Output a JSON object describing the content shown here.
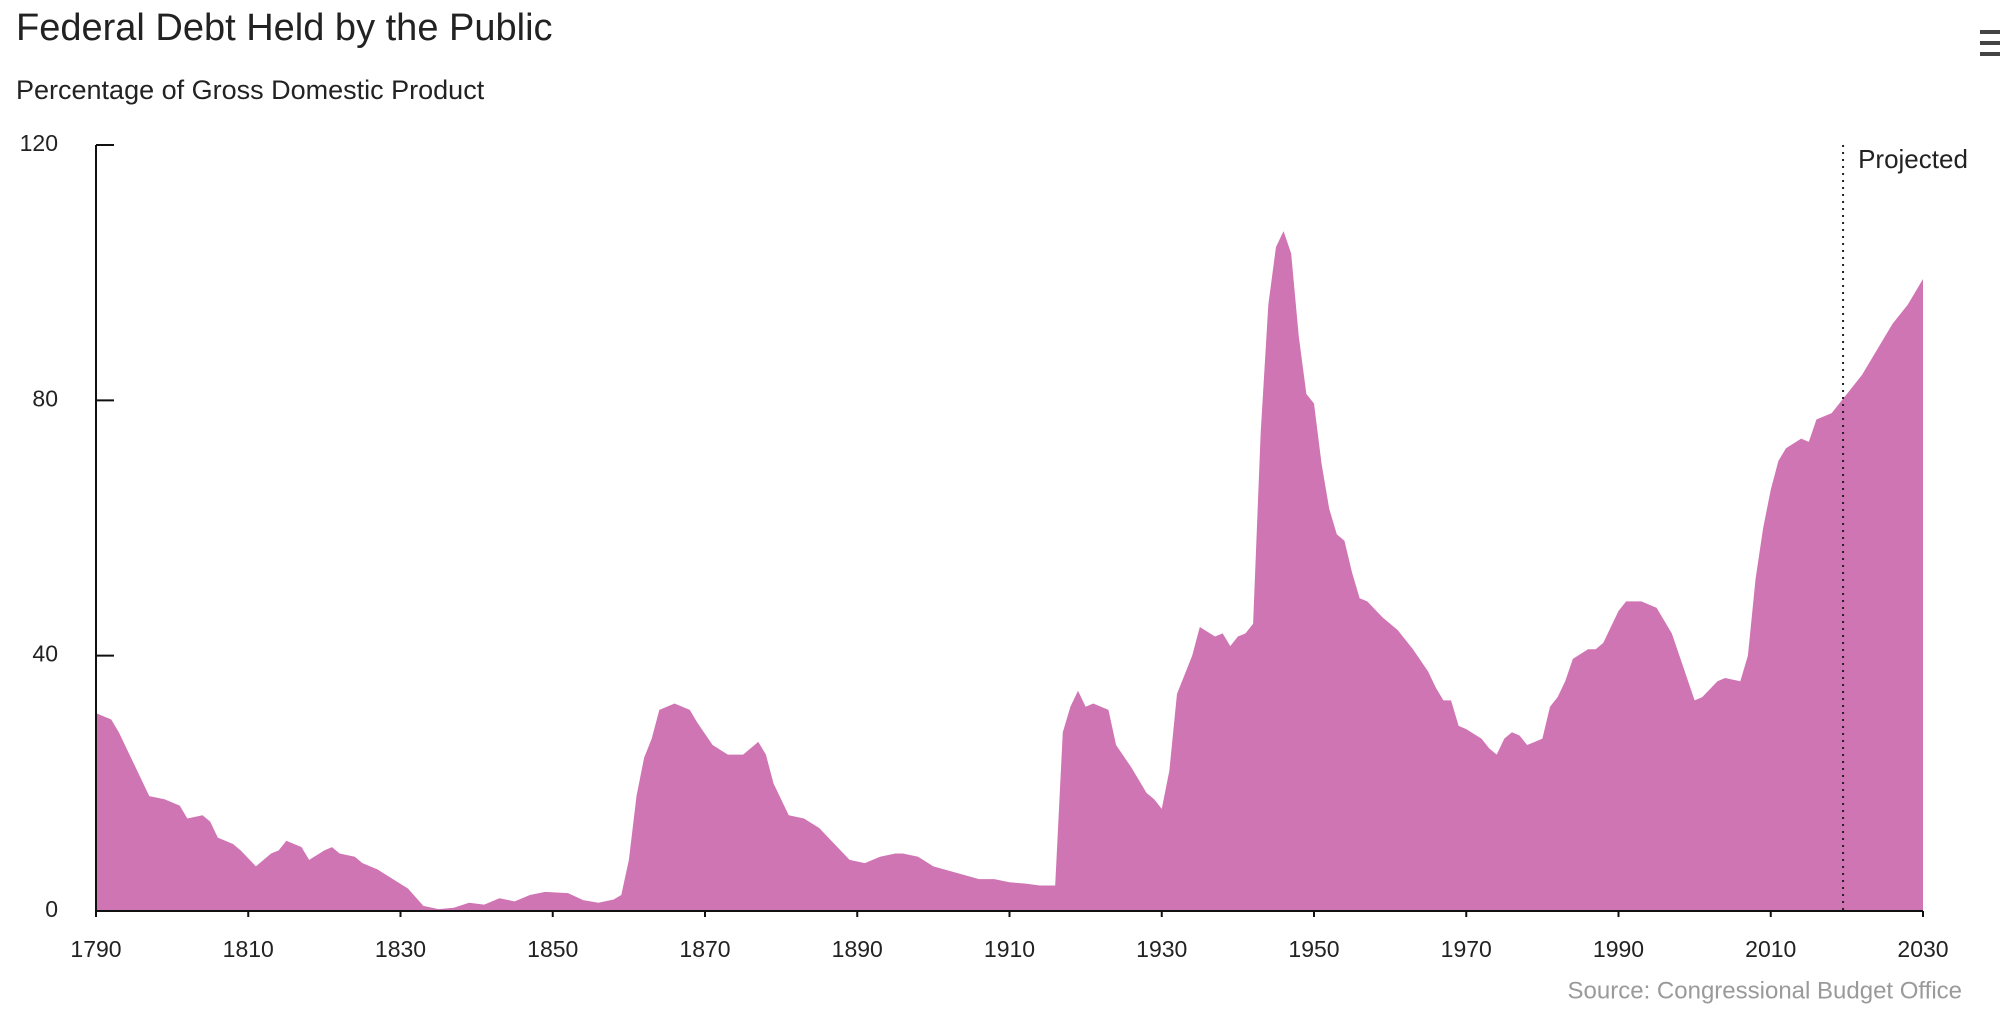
{
  "chart_data": {
    "type": "area",
    "title": "Federal Debt Held by the Public",
    "subtitle": "Percentage of Gross Domestic Product",
    "source": "Source: Congressional Budget Office",
    "color": "#d075b3",
    "annotations": [
      {
        "text": "Projected",
        "x": 2019.5
      }
    ],
    "xlim": [
      1790,
      2030
    ],
    "xticks": [
      1790,
      1810,
      1830,
      1850,
      1870,
      1890,
      1910,
      1930,
      1950,
      1970,
      1990,
      2010,
      2030
    ],
    "ylim": [
      0,
      120
    ],
    "yticks": [
      0,
      40,
      80,
      120
    ],
    "x": [
      1790,
      1792,
      1793,
      1795,
      1797,
      1799,
      1801,
      1802,
      1804,
      1805,
      1806,
      1808,
      1809,
      1811,
      1813,
      1814,
      1815,
      1817,
      1818,
      1820,
      1821,
      1822,
      1824,
      1825,
      1827,
      1829,
      1831,
      1833,
      1835,
      1837,
      1839,
      1841,
      1843,
      1845,
      1847,
      1849,
      1852,
      1854,
      1856,
      1858,
      1859,
      1860,
      1861,
      1862,
      1863,
      1864,
      1866,
      1868,
      1869,
      1871,
      1873,
      1875,
      1877,
      1878,
      1879,
      1881,
      1883,
      1885,
      1887,
      1889,
      1891,
      1893,
      1895,
      1896,
      1898,
      1900,
      1903,
      1906,
      1908,
      1910,
      1912,
      1914,
      1916,
      1917,
      1918,
      1919,
      1920,
      1921,
      1923,
      1924,
      1926,
      1928,
      1929,
      1930,
      1931,
      1932,
      1934,
      1935,
      1937,
      1938,
      1939,
      1940,
      1941,
      1942,
      1943,
      1944,
      1945,
      1946,
      1947,
      1948,
      1949,
      1950,
      1951,
      1952,
      1953,
      1954,
      1955,
      1956,
      1957,
      1959,
      1961,
      1963,
      1965,
      1966,
      1967,
      1968,
      1969,
      1970,
      1972,
      1973,
      1974,
      1975,
      1976,
      1977,
      1978,
      1979,
      1980,
      1981,
      1982,
      1983,
      1984,
      1986,
      1987,
      1988,
      1990,
      1991,
      1993,
      1995,
      1997,
      1998,
      2000,
      2001,
      2003,
      2004,
      2006,
      2007,
      2008,
      2009,
      2010,
      2011,
      2012,
      2014,
      2015,
      2016,
      2018,
      2020,
      2022,
      2024,
      2026,
      2028,
      2030
    ],
    "values": [
      31,
      30,
      28,
      23,
      18,
      17.5,
      16.5,
      14.5,
      15,
      14,
      11.5,
      10.5,
      9.5,
      7,
      9,
      9.5,
      11,
      10,
      8,
      9.5,
      10,
      9,
      8.5,
      7.5,
      6.5,
      5,
      3.5,
      0.8,
      0.3,
      0.5,
      1.3,
      1,
      2,
      1.5,
      2.5,
      3,
      2.8,
      1.7,
      1.3,
      1.8,
      2.5,
      8,
      18,
      24,
      27,
      31.5,
      32.5,
      31.5,
      29.5,
      26,
      24.5,
      24.5,
      26.5,
      24.5,
      20,
      15,
      14.5,
      13,
      10.5,
      8,
      7.5,
      8.5,
      9,
      9,
      8.5,
      7,
      6,
      5,
      5,
      4.5,
      4.3,
      4,
      4,
      28,
      32,
      34.5,
      32,
      32.5,
      31.5,
      26,
      22.5,
      18.5,
      17.5,
      16,
      22,
      34,
      40,
      44.5,
      43,
      43.5,
      41.5,
      43,
      43.5,
      45,
      75,
      95,
      104,
      106.5,
      103,
      90,
      81,
      79.5,
      70,
      63,
      59,
      58,
      53,
      49,
      48.5,
      46,
      44,
      41,
      37.5,
      35,
      33,
      33,
      29,
      28.5,
      27,
      25.5,
      24.5,
      27,
      28,
      27.5,
      26,
      26.5,
      27,
      32,
      33.5,
      36,
      39.5,
      41,
      41,
      42,
      47,
      48.5,
      48.5,
      47.5,
      43.5,
      40,
      33,
      33.5,
      36,
      36.5,
      36,
      40,
      52,
      60,
      66,
      70.5,
      72.5,
      74,
      73.5,
      77,
      78,
      81,
      84,
      88,
      92,
      95,
      99
    ]
  }
}
